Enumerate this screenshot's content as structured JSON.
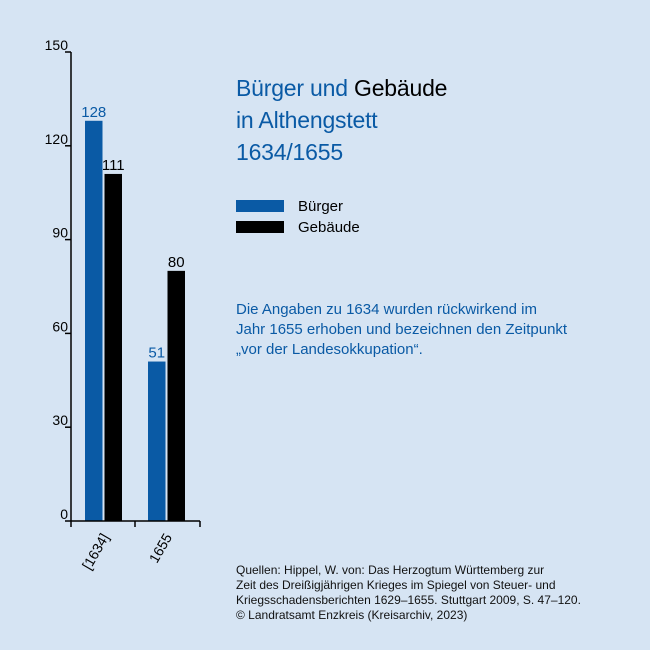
{
  "title": {
    "part1_colored": "Bürger und",
    "part1_plain": "Gebäude",
    "line2": "in Althengstett",
    "line3": "1634/1655"
  },
  "note_lines": [
    "Die Angaben zu 1634 wurden rückwirkend im",
    "Jahr 1655 erhoben und bezeichnen den Zeitpunkt",
    "„vor der Landesokkupation“."
  ],
  "source_lines": [
    "Quellen: Hippel, W. von: Das Herzogtum Württemberg zur",
    "Zeit des Dreißigjährigen Krieges im Spiegel von Steuer- und",
    "Kriegsschadensberichten 1629–1655. Stuttgart 2009, S. 47–120.",
    "© Landratsamt Enzkreis (Kreisarchiv, 2023)"
  ],
  "colors": {
    "background": "#d6e4f3",
    "buerger": "#0a5aa5",
    "gebaeude": "#000000"
  },
  "chart_data": {
    "type": "bar",
    "categories": [
      "[1634]",
      "1655"
    ],
    "series": [
      {
        "name": "Bürger",
        "values": [
          128,
          51
        ],
        "color": "#0a5aa5"
      },
      {
        "name": "Gebäude",
        "values": [
          111,
          80
        ],
        "color": "#000000"
      }
    ],
    "ylim": [
      0,
      150
    ],
    "yticks": [
      0,
      30,
      60,
      90,
      120,
      150
    ],
    "grid": false,
    "legend": "right"
  }
}
